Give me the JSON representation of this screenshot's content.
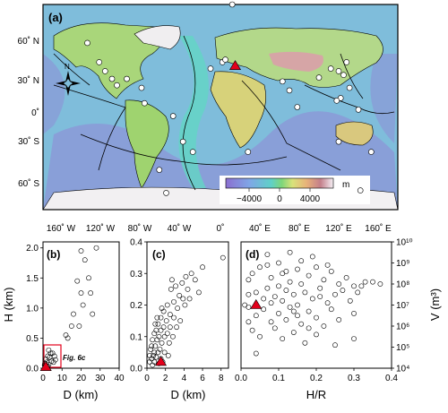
{
  "map": {
    "panel_label": "(a)",
    "lat_labels": [
      "60˚ N",
      "30˚ N",
      "0˚",
      "30˚ S",
      "60˚ S"
    ],
    "lon_labels": [
      "160˚ W",
      "120˚ W",
      "80˚ W",
      "40˚ W",
      "0˚",
      "40˚ E",
      "80˚ E",
      "120˚ E",
      "160˚ E"
    ],
    "north_label": "N",
    "colorbar": {
      "ticks": [
        "−4000",
        "0",
        "4000"
      ],
      "unit": "m"
    },
    "colors": {
      "ocean_deep": "#9a86d8",
      "ocean_mid": "#7fb0e8",
      "ocean_shallow": "#66d6c8",
      "land_low": "#a6d96a",
      "land_mid": "#e8c987",
      "land_high": "#c98080",
      "ice": "#f2f2f2",
      "plate_boundary": "#000000",
      "highlight": "#e3001b"
    },
    "sample_points": [
      {
        "lon": -135,
        "lat": 55
      },
      {
        "lon": -123,
        "lat": 40
      },
      {
        "lon": -117,
        "lat": 33
      },
      {
        "lon": -110,
        "lat": 27
      },
      {
        "lon": -105,
        "lat": 22
      },
      {
        "lon": -95,
        "lat": 27
      },
      {
        "lon": -80,
        "lat": 20
      },
      {
        "lon": -77,
        "lat": 8
      },
      {
        "lon": -48,
        "lat": -2
      },
      {
        "lon": -38,
        "lat": -22
      },
      {
        "lon": -28,
        "lat": -30
      },
      {
        "lon": -62,
        "lat": -44
      },
      {
        "lon": -55,
        "lat": -62
      },
      {
        "lon": 12,
        "lat": 85
      },
      {
        "lon": -10,
        "lat": 35
      },
      {
        "lon": 2,
        "lat": 40
      },
      {
        "lon": 5,
        "lat": 42
      },
      {
        "lon": 28,
        "lat": -30
      },
      {
        "lon": 63,
        "lat": 25
      },
      {
        "lon": 70,
        "lat": 18
      },
      {
        "lon": 78,
        "lat": 5
      },
      {
        "lon": 100,
        "lat": 28
      },
      {
        "lon": 112,
        "lat": 35
      },
      {
        "lon": 120,
        "lat": 33
      },
      {
        "lon": 125,
        "lat": 30
      },
      {
        "lon": 128,
        "lat": 40
      },
      {
        "lon": 131,
        "lat": 20
      },
      {
        "lon": 122,
        "lat": 12
      },
      {
        "lon": 118,
        "lat": 10
      },
      {
        "lon": 140,
        "lat": 3
      },
      {
        "lon": 120,
        "lat": -22
      },
      {
        "lon": 153,
        "lat": -30
      },
      {
        "lon": 142,
        "lat": -60
      }
    ],
    "highlight_point": {
      "lon": 15,
      "lat": 37
    }
  },
  "panel_b": {
    "label": "(b)",
    "xlabel": "D (km)",
    "ylabel": "H (km)",
    "xticks": [
      "0",
      "10",
      "20",
      "30",
      "40"
    ],
    "yticks": [
      "0.0",
      "0.5",
      "1.0",
      "1.5",
      "2.0"
    ],
    "xlim": [
      0,
      40
    ],
    "ylim": [
      0,
      2.1
    ],
    "inset_label": "Fig. 6c"
  },
  "panel_c": {
    "label": "(c)",
    "xlabel": "D (km)",
    "xticks": [
      "0",
      "2",
      "4",
      "6",
      "8"
    ],
    "yticks": [
      "0.0",
      "0.1",
      "0.2",
      "0.3",
      "0.4"
    ],
    "xlim": [
      0,
      8.8
    ],
    "ylim": [
      0,
      0.4
    ]
  },
  "panel_d": {
    "label": "(d)",
    "xlabel": "H/R",
    "ylabel": "V (m³)",
    "xticks": [
      "0.0",
      "0.1",
      "0.2",
      "0.3",
      "0.4"
    ],
    "yticks": [
      "10⁴",
      "10⁵",
      "10⁶",
      "10⁷",
      "10⁸",
      "10⁹",
      "10¹⁰"
    ],
    "xlim": [
      0,
      0.4
    ],
    "ylim": [
      4,
      10
    ]
  },
  "chart_data": [
    {
      "type": "scatter",
      "panel": "b",
      "xlabel": "D (km)",
      "ylabel": "H (km)",
      "xlim": [
        0,
        40
      ],
      "ylim": [
        0,
        2.1
      ],
      "points": [
        [
          28,
          2.0
        ],
        [
          22,
          1.8
        ],
        [
          20,
          1.95
        ],
        [
          24,
          1.5
        ],
        [
          18,
          1.45
        ],
        [
          25,
          1.25
        ],
        [
          20,
          1.25
        ],
        [
          21,
          1.05
        ],
        [
          26,
          0.9
        ],
        [
          16,
          0.9
        ],
        [
          15,
          0.7
        ],
        [
          19,
          0.7
        ],
        [
          12,
          0.55
        ],
        [
          13,
          0.5
        ],
        [
          3,
          0.3
        ],
        [
          4,
          0.25
        ],
        [
          5,
          0.25
        ],
        [
          2.5,
          0.2
        ],
        [
          6,
          0.2
        ],
        [
          3.5,
          0.18
        ],
        [
          1.5,
          0.15
        ],
        [
          4.5,
          0.12
        ],
        [
          2,
          0.1
        ],
        [
          5.5,
          0.1
        ],
        [
          1,
          0.08
        ],
        [
          3,
          0.06
        ],
        [
          0.8,
          0.05
        ],
        [
          1.8,
          0.04
        ],
        [
          2.5,
          0.03
        ],
        [
          6.5,
          0.14
        ],
        [
          1.2,
          0.02
        ]
      ],
      "highlight": [
        1.5,
        0.02
      ]
    },
    {
      "type": "scatter",
      "panel": "c",
      "xlabel": "D (km)",
      "xlim": [
        0,
        8.8
      ],
      "ylim": [
        0,
        0.4
      ],
      "points": [
        [
          8.2,
          0.35
        ],
        [
          6,
          0.32
        ],
        [
          4.8,
          0.3
        ],
        [
          4.2,
          0.29
        ],
        [
          5.2,
          0.28
        ],
        [
          3.8,
          0.27
        ],
        [
          3.1,
          0.26
        ],
        [
          4.4,
          0.25
        ],
        [
          5.6,
          0.24
        ],
        [
          2.6,
          0.25
        ],
        [
          3.5,
          0.23
        ],
        [
          2.9,
          0.21
        ],
        [
          2.2,
          0.2
        ],
        [
          4.1,
          0.2
        ],
        [
          3.3,
          0.19
        ],
        [
          1.8,
          0.18
        ],
        [
          2.5,
          0.17
        ],
        [
          2.9,
          0.16
        ],
        [
          1.5,
          0.16
        ],
        [
          2.1,
          0.15
        ],
        [
          3.6,
          0.15
        ],
        [
          1.2,
          0.14
        ],
        [
          1.8,
          0.13
        ],
        [
          2.5,
          0.13
        ],
        [
          1.0,
          0.12
        ],
        [
          1.5,
          0.12
        ],
        [
          2.2,
          0.11
        ],
        [
          0.8,
          0.11
        ],
        [
          1.3,
          0.1
        ],
        [
          1.9,
          0.1
        ],
        [
          0.6,
          0.09
        ],
        [
          1.1,
          0.09
        ],
        [
          1.6,
          0.08
        ],
        [
          2.4,
          0.08
        ],
        [
          0.5,
          0.07
        ],
        [
          0.9,
          0.07
        ],
        [
          1.4,
          0.06
        ],
        [
          0.4,
          0.06
        ],
        [
          0.8,
          0.05
        ],
        [
          1.2,
          0.05
        ],
        [
          1.9,
          0.05
        ],
        [
          0.3,
          0.04
        ],
        [
          0.7,
          0.04
        ],
        [
          1.0,
          0.035
        ],
        [
          1.5,
          0.03
        ],
        [
          0.5,
          0.03
        ],
        [
          0.3,
          0.02
        ],
        [
          0.8,
          0.02
        ],
        [
          1.3,
          0.015
        ],
        [
          0.6,
          0.01
        ],
        [
          1.7,
          0.02
        ],
        [
          2.3,
          0.04
        ],
        [
          2.8,
          0.1
        ],
        [
          3.9,
          0.22
        ],
        [
          1.6,
          0.19
        ],
        [
          2.7,
          0.28
        ],
        [
          4.6,
          0.22
        ],
        [
          3.2,
          0.13
        ],
        [
          1.1,
          0.16
        ],
        [
          0.9,
          0.14
        ]
      ],
      "highlight": [
        1.5,
        0.02
      ]
    },
    {
      "type": "scatter",
      "panel": "d",
      "xlabel": "H/R",
      "ylabel": "V (m³)",
      "xlim": [
        0,
        0.4
      ],
      "ylim": [
        4,
        10
      ],
      "yscale": "log10",
      "points": [
        [
          0.02,
          8.2
        ],
        [
          0.03,
          8.5
        ],
        [
          0.05,
          8.8
        ],
        [
          0.07,
          8.9
        ],
        [
          0.08,
          8.3
        ],
        [
          0.1,
          9.0
        ],
        [
          0.12,
          8.6
        ],
        [
          0.13,
          8.1
        ],
        [
          0.15,
          8.7
        ],
        [
          0.16,
          9.1
        ],
        [
          0.18,
          8.4
        ],
        [
          0.2,
          8.8
        ],
        [
          0.22,
          8.2
        ],
        [
          0.24,
          8.6
        ],
        [
          0.26,
          8.0
        ],
        [
          0.28,
          8.3
        ],
        [
          0.3,
          7.9
        ],
        [
          0.33,
          8.1
        ],
        [
          0.37,
          8.0
        ],
        [
          0.02,
          7.5
        ],
        [
          0.04,
          7.6
        ],
        [
          0.06,
          7.3
        ],
        [
          0.07,
          7.8
        ],
        [
          0.09,
          7.4
        ],
        [
          0.1,
          7.9
        ],
        [
          0.11,
          7.2
        ],
        [
          0.12,
          7.7
        ],
        [
          0.14,
          7.5
        ],
        [
          0.15,
          7.0
        ],
        [
          0.17,
          7.6
        ],
        [
          0.19,
          7.3
        ],
        [
          0.21,
          7.8
        ],
        [
          0.23,
          7.1
        ],
        [
          0.25,
          7.5
        ],
        [
          0.27,
          7.7
        ],
        [
          0.29,
          7.2
        ],
        [
          0.31,
          7.6
        ],
        [
          0.02,
          6.9
        ],
        [
          0.04,
          6.5
        ],
        [
          0.06,
          6.8
        ],
        [
          0.08,
          6.2
        ],
        [
          0.1,
          6.6
        ],
        [
          0.12,
          6.3
        ],
        [
          0.13,
          6.9
        ],
        [
          0.15,
          6.5
        ],
        [
          0.16,
          6.1
        ],
        [
          0.18,
          6.7
        ],
        [
          0.2,
          6.4
        ],
        [
          0.22,
          6.0
        ],
        [
          0.24,
          6.8
        ],
        [
          0.26,
          6.3
        ],
        [
          0.3,
          6.6
        ],
        [
          0.03,
          5.8
        ],
        [
          0.05,
          5.5
        ],
        [
          0.09,
          5.9
        ],
        [
          0.11,
          5.4
        ],
        [
          0.14,
          5.7
        ],
        [
          0.17,
          5.2
        ],
        [
          0.2,
          5.6
        ],
        [
          0.25,
          5.1
        ],
        [
          0.3,
          5.4
        ],
        [
          0.04,
          4.7
        ],
        [
          0.07,
          9.4
        ],
        [
          0.13,
          9.5
        ],
        [
          0.19,
          9.3
        ],
        [
          0.11,
          8.5
        ],
        [
          0.16,
          8.0
        ],
        [
          0.21,
          7.4
        ],
        [
          0.08,
          7.1
        ],
        [
          0.14,
          6.7
        ],
        [
          0.18,
          5.9
        ],
        [
          0.32,
          7.9
        ],
        [
          0.23,
          8.9
        ],
        [
          0.01,
          7.0
        ],
        [
          0.02,
          6.2
        ],
        [
          0.35,
          8.1
        ]
      ],
      "highlight": [
        0.04,
        7.0
      ]
    }
  ]
}
